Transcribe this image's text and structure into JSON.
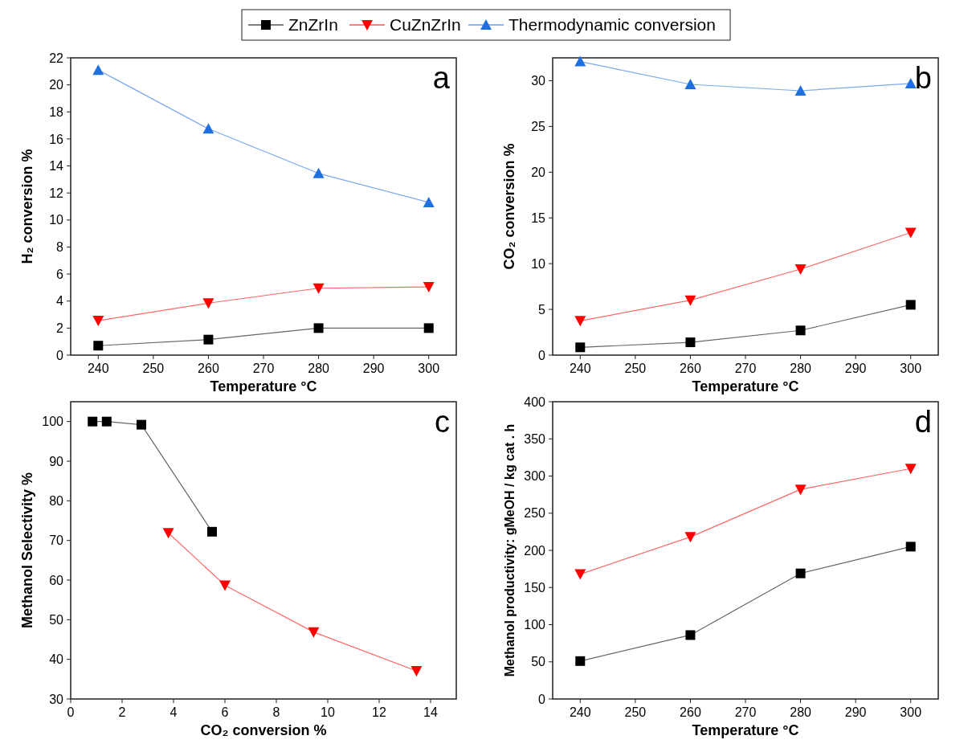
{
  "chart_data": [
    {
      "type": "line",
      "xlabel": "Temperature °C",
      "ylabel": "H₂ conversion %",
      "annotations": [
        "a"
      ],
      "x": [
        240,
        260,
        280,
        300
      ],
      "xlim": [
        235,
        305
      ],
      "xticks": [
        240,
        250,
        260,
        270,
        280,
        290,
        300
      ],
      "ylim": [
        0,
        22
      ],
      "yticks": [
        0,
        2,
        4,
        6,
        8,
        10,
        12,
        14,
        16,
        18,
        20,
        22
      ],
      "legend": "top",
      "grid": false,
      "series": [
        {
          "name": "ZnZrIn",
          "color": "#000000",
          "marker": "square",
          "values": [
            0.7,
            1.15,
            2.0,
            2.0
          ]
        },
        {
          "name": "CuZnZrIn",
          "color": "#ff0000",
          "marker": "triangle-down",
          "values": [
            2.55,
            3.85,
            4.95,
            5.05
          ]
        },
        {
          "name": "Thermodynamic conversion",
          "color": "#1f6fdf",
          "marker": "triangle",
          "values": [
            21.1,
            16.75,
            13.45,
            11.3
          ]
        }
      ]
    },
    {
      "type": "line",
      "xlabel": "Temperature °C",
      "ylabel": "CO₂ conversion %",
      "annotations": [
        "b"
      ],
      "x": [
        240,
        260,
        280,
        300
      ],
      "xlim": [
        235,
        305
      ],
      "xticks": [
        240,
        250,
        260,
        270,
        280,
        290,
        300
      ],
      "ylim": [
        0,
        32.5
      ],
      "yticks": [
        0,
        5,
        10,
        15,
        20,
        25,
        30
      ],
      "grid": false,
      "series": [
        {
          "color": "#000000",
          "marker": "square",
          "values": [
            0.85,
            1.4,
            2.7,
            5.5
          ]
        },
        {
          "color": "#ff0000",
          "marker": "triangle-down",
          "values": [
            3.75,
            6.0,
            9.4,
            13.4
          ]
        },
        {
          "color": "#1f6fdf",
          "marker": "triangle",
          "values": [
            32.1,
            29.6,
            28.9,
            29.7
          ]
        }
      ]
    },
    {
      "type": "line",
      "xlabel": "CO₂ conversion %",
      "ylabel": "Methanol Selectivity %",
      "annotations": [
        "c"
      ],
      "xlim": [
        0,
        15
      ],
      "xticks": [
        0,
        2,
        4,
        6,
        8,
        10,
        12,
        14
      ],
      "ylim": [
        30,
        105
      ],
      "yticks": [
        30,
        40,
        50,
        60,
        70,
        80,
        90,
        100
      ],
      "grid": false,
      "series": [
        {
          "color": "#000000",
          "marker": "square",
          "x": [
            0.85,
            1.4,
            2.75,
            5.5
          ],
          "values": [
            100,
            100,
            99.2,
            72.2
          ]
        },
        {
          "color": "#ff0000",
          "marker": "triangle-down",
          "x": [
            3.8,
            6.0,
            9.45,
            13.45
          ],
          "values": [
            71.9,
            58.7,
            46.9,
            37.1
          ]
        }
      ]
    },
    {
      "type": "line",
      "xlabel": "Temperature °C",
      "ylabel": "Methanol productivity: gMeOH / kg cat . h",
      "annotations": [
        "d"
      ],
      "x": [
        240,
        260,
        280,
        300
      ],
      "xlim": [
        235,
        305
      ],
      "xticks": [
        240,
        250,
        260,
        270,
        280,
        290,
        300
      ],
      "ylim": [
        0,
        400
      ],
      "yticks": [
        0,
        50,
        100,
        150,
        200,
        250,
        300,
        350,
        400
      ],
      "grid": false,
      "series": [
        {
          "color": "#000000",
          "marker": "square",
          "values": [
            51,
            86,
            169,
            205
          ]
        },
        {
          "color": "#ff0000",
          "marker": "triangle-down",
          "values": [
            168,
            218,
            282,
            310
          ]
        }
      ]
    }
  ]
}
